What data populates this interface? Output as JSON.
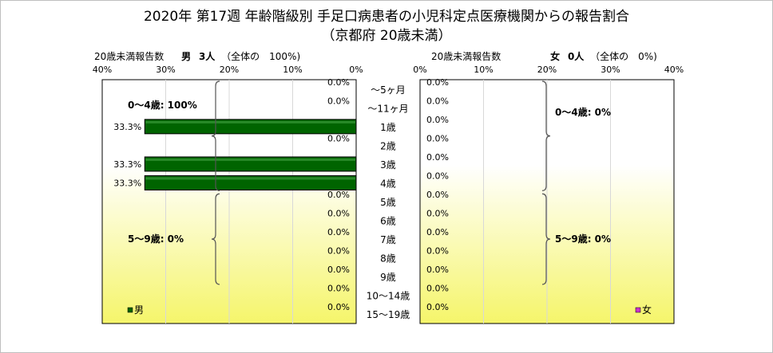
{
  "title": "2020年 第17週 年齢階級別 手足口病患者の小児科定点医療機関からの報告割合",
  "subtitle": "（京都府 20歳未満）",
  "left_header": {
    "label": "20歳未満報告数",
    "sex": "男",
    "count": "3人",
    "share": "（全体の　100%)"
  },
  "right_header": {
    "label": "20歳未満報告数",
    "sex": "女",
    "count": "0人",
    "share": "（全体の　0%)"
  },
  "colors": {
    "male": "#006400",
    "female": "#cc33cc",
    "plot_bg_top": "#ffffff",
    "plot_bg_bottom": "#f5f56a"
  },
  "chart_data": {
    "type": "bar",
    "orientation": "horizontal-butterfly",
    "categories": [
      "～5ヶ月",
      "～11ヶ月",
      "1歳",
      "2歳",
      "3歳",
      "4歳",
      "5歳",
      "6歳",
      "7歳",
      "8歳",
      "9歳",
      "10～14歳",
      "15～19歳"
    ],
    "series": [
      {
        "name": "男",
        "values": [
          0.0,
          0.0,
          33.3,
          0.0,
          33.3,
          33.3,
          0.0,
          0.0,
          0.0,
          0.0,
          0.0,
          0.0,
          0.0
        ]
      },
      {
        "name": "女",
        "values": [
          0.0,
          0.0,
          0.0,
          0.0,
          0.0,
          0.0,
          0.0,
          0.0,
          0.0,
          0.0,
          0.0,
          0.0,
          0.0
        ]
      }
    ],
    "value_format": "{v}%",
    "xlim": [
      0,
      40
    ],
    "left_ticks": [
      "40%",
      "30%",
      "20%",
      "10%",
      "0%"
    ],
    "right_ticks": [
      "0%",
      "10%",
      "20%",
      "30%",
      "40%"
    ],
    "annotations": [
      {
        "panel": "male",
        "text": "0～4歳: 100%",
        "first": 0,
        "last": 5
      },
      {
        "panel": "male",
        "text": "5～9歳: 0%",
        "first": 6,
        "last": 10
      },
      {
        "panel": "female",
        "text": "0～4歳: 0%",
        "first": 0,
        "last": 5
      },
      {
        "panel": "female",
        "text": "5～9歳: 0%",
        "first": 6,
        "last": 10
      }
    ],
    "grid": true,
    "legend": [
      "男",
      "女"
    ]
  }
}
